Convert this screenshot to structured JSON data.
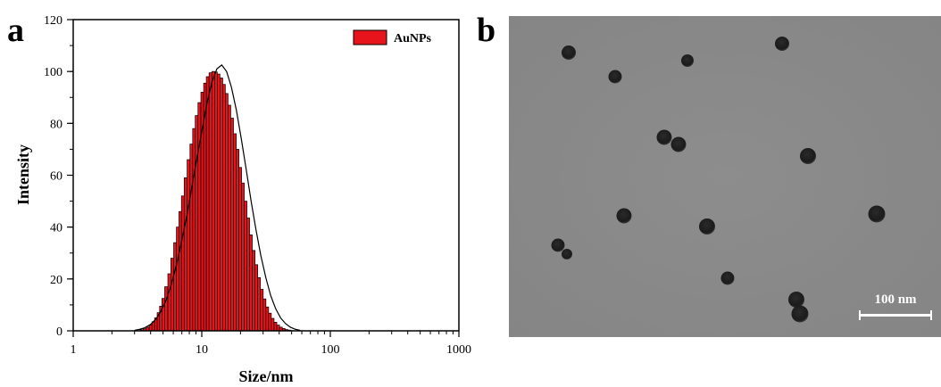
{
  "panels": {
    "a_letter": "a",
    "b_letter": "b"
  },
  "chart_data": {
    "type": "bar",
    "title": "",
    "xlabel": "Size/nm",
    "ylabel": "Intensity",
    "x_scale": "log",
    "xlim": [
      1,
      1000
    ],
    "ylim": [
      0,
      120
    ],
    "x_ticks": [
      "1",
      "10",
      "100",
      "1000"
    ],
    "y_ticks": [
      "0",
      "20",
      "40",
      "60",
      "80",
      "100",
      "120"
    ],
    "legend": {
      "entries": [
        "AuNPs"
      ],
      "placement": "top-right"
    },
    "series": [
      {
        "name": "AuNPs",
        "color": "#e8141c",
        "x": [
          3.4,
          3.6,
          3.8,
          4.0,
          4.2,
          4.4,
          4.6,
          4.8,
          5.0,
          5.3,
          5.6,
          5.9,
          6.2,
          6.5,
          6.8,
          7.1,
          7.5,
          7.9,
          8.3,
          8.7,
          9.1,
          9.6,
          10.1,
          10.6,
          11.1,
          11.7,
          12.3,
          12.9,
          13.5,
          14.2,
          14.9,
          15.6,
          16.4,
          17.2,
          18.1,
          19.0,
          19.9,
          20.9,
          21.9,
          23.0,
          24.1,
          25.3,
          26.6,
          27.9,
          29.3,
          30.8,
          32.3,
          33.9,
          35.6,
          37.4,
          39.3,
          41.3,
          43.4,
          45.5,
          47.8,
          50.2
        ],
        "values": [
          0.4,
          0.8,
          1.4,
          2.3,
          3.5,
          5.0,
          7.0,
          9.5,
          12.5,
          17,
          22,
          28,
          34,
          40,
          46,
          52,
          59,
          66,
          72,
          78,
          83,
          88,
          92,
          95.5,
          98,
          99.5,
          100,
          99.8,
          99,
          97.5,
          95,
          91.5,
          87,
          82,
          76,
          70,
          63,
          57,
          50,
          43.5,
          37,
          31,
          25.5,
          20.5,
          16,
          12.3,
          9.2,
          6.8,
          4.8,
          3.3,
          2.2,
          1.4,
          0.9,
          0.5,
          0.3,
          0.1
        ]
      },
      {
        "name": "",
        "type": "line",
        "color": "#000000",
        "x": [
          3.0,
          3.3,
          3.6,
          4.0,
          4.4,
          4.8,
          5.3,
          5.8,
          6.4,
          7.0,
          7.7,
          8.4,
          9.2,
          10.1,
          11.0,
          12.0,
          13.1,
          14.3,
          15.6,
          17.0,
          18.6,
          20.3,
          22.2,
          24.2,
          26.4,
          28.8,
          31.5,
          34.4,
          37.6,
          41.0,
          44.8,
          48.9,
          53.4,
          58.3
        ],
        "values": [
          0.2,
          0.6,
          1.2,
          2.5,
          4.5,
          7.5,
          12,
          18,
          26,
          35,
          45,
          56,
          67,
          78,
          88,
          96,
          101,
          102.5,
          100,
          94,
          85,
          74,
          62,
          50,
          39,
          29,
          20.5,
          13.5,
          8.5,
          5,
          2.8,
          1.4,
          0.6,
          0.2
        ]
      }
    ]
  },
  "image_b": {
    "scale_bar_label": "100 nm"
  }
}
